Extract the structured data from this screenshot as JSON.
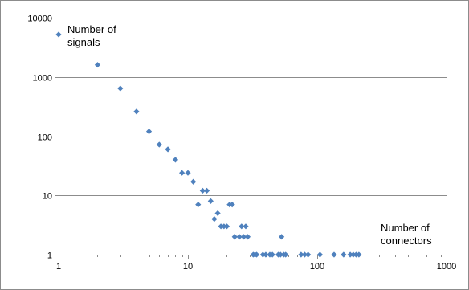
{
  "chart_data": {
    "type": "scatter",
    "title": "",
    "xlabel": "",
    "ylabel": "",
    "x_scale": "log",
    "y_scale": "log",
    "xlim": [
      1,
      1000
    ],
    "ylim": [
      1,
      10000
    ],
    "x_ticks": [
      "1",
      "10",
      "100",
      "1000"
    ],
    "y_ticks": [
      "1",
      "10",
      "100",
      "1000",
      "10000"
    ],
    "grid": "horizontal",
    "marker": "diamond",
    "color": "#4f81bd",
    "annotations": {
      "y_axis": [
        "Number of",
        "signals"
      ],
      "x_axis": [
        "Number of",
        "connectors"
      ]
    },
    "series": [
      {
        "points": [
          [
            1,
            5200
          ],
          [
            2,
            1600
          ],
          [
            3,
            640
          ],
          [
            4,
            260
          ],
          [
            5,
            120
          ],
          [
            6,
            72
          ],
          [
            7,
            60
          ],
          [
            8,
            40
          ],
          [
            9,
            24
          ],
          [
            10,
            24
          ],
          [
            11,
            17
          ],
          [
            12,
            7
          ],
          [
            13,
            12
          ],
          [
            14,
            12
          ],
          [
            15,
            8
          ],
          [
            16,
            4
          ],
          [
            17,
            5
          ],
          [
            18,
            3
          ],
          [
            19,
            3
          ],
          [
            20,
            3
          ],
          [
            21,
            7
          ],
          [
            22,
            7
          ],
          [
            23,
            2
          ],
          [
            25,
            2
          ],
          [
            26,
            3
          ],
          [
            27,
            2
          ],
          [
            28,
            3
          ],
          [
            29,
            2
          ],
          [
            32,
            1
          ],
          [
            33,
            1
          ],
          [
            34,
            1
          ],
          [
            38,
            1
          ],
          [
            40,
            1
          ],
          [
            43,
            1
          ],
          [
            45,
            1
          ],
          [
            50,
            1
          ],
          [
            52,
            1
          ],
          [
            53,
            2
          ],
          [
            55,
            1
          ],
          [
            57,
            1
          ],
          [
            75,
            1
          ],
          [
            80,
            1
          ],
          [
            85,
            1
          ],
          [
            105,
            1
          ],
          [
            135,
            1
          ],
          [
            160,
            1
          ],
          [
            180,
            1
          ],
          [
            190,
            1
          ],
          [
            200,
            1
          ],
          [
            210,
            1
          ]
        ]
      }
    ]
  }
}
